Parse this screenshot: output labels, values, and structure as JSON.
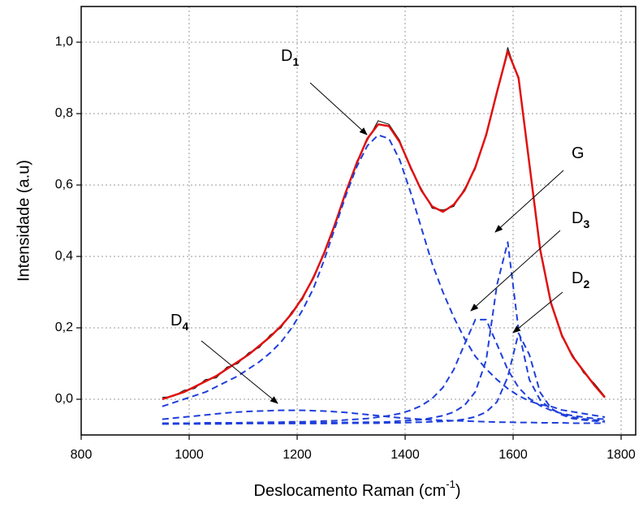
{
  "chart_data": {
    "type": "line",
    "x_label": [
      "Deslocamento Raman (cm",
      "-1",
      ")"
    ],
    "y_label": "Intensidade (a.u)",
    "xlim": [
      800,
      1827
    ],
    "ylim": [
      -0.1,
      1.1
    ],
    "xticks": [
      800,
      1000,
      1200,
      1400,
      1600,
      1800
    ],
    "yticks": [
      {
        "value": 0,
        "label": "0,0"
      },
      {
        "value": 0.2,
        "label": "0,2"
      },
      {
        "value": 0.4,
        "label": "0,4"
      },
      {
        "value": 0.6,
        "label": "0,6"
      },
      {
        "value": 0.8,
        "label": "0,8"
      },
      {
        "value": 1,
        "label": "1,0"
      }
    ],
    "grid": true,
    "annotations": [
      {
        "text": "D",
        "sub": "1"
      },
      {
        "text": "G"
      },
      {
        "text": "D",
        "sub": "3"
      },
      {
        "text": "D",
        "sub": "2"
      },
      {
        "text": "D",
        "sub": "4"
      }
    ],
    "x": [
      950,
      970,
      990,
      1010,
      1030,
      1050,
      1070,
      1090,
      1110,
      1130,
      1150,
      1170,
      1190,
      1210,
      1230,
      1250,
      1270,
      1290,
      1310,
      1330,
      1350,
      1370,
      1390,
      1410,
      1430,
      1450,
      1470,
      1490,
      1510,
      1530,
      1550,
      1570,
      1590,
      1610,
      1630,
      1650,
      1670,
      1690,
      1710,
      1730,
      1750,
      1770
    ],
    "series": [
      {
        "color": "#000000",
        "style": "solid",
        "values": [
          0.005,
          0.008,
          0.025,
          0.03,
          0.055,
          0.06,
          0.09,
          0.1,
          0.13,
          0.145,
          0.18,
          0.2,
          0.245,
          0.28,
          0.345,
          0.405,
          0.495,
          0.575,
          0.665,
          0.725,
          0.78,
          0.77,
          0.725,
          0.645,
          0.59,
          0.535,
          0.53,
          0.54,
          0.59,
          0.645,
          0.745,
          0.855,
          0.985,
          0.895,
          0.665,
          0.415,
          0.275,
          0.175,
          0.125,
          0.075,
          0.045,
          0.008
        ]
      },
      {
        "color": "#e01010",
        "style": "solid",
        "values": [
          0.0,
          0.01,
          0.02,
          0.035,
          0.05,
          0.065,
          0.085,
          0.105,
          0.125,
          0.15,
          0.175,
          0.205,
          0.24,
          0.285,
          0.34,
          0.41,
          0.49,
          0.58,
          0.66,
          0.73,
          0.77,
          0.765,
          0.72,
          0.65,
          0.585,
          0.54,
          0.525,
          0.545,
          0.585,
          0.65,
          0.74,
          0.86,
          0.975,
          0.9,
          0.66,
          0.42,
          0.27,
          0.18,
          0.12,
          0.08,
          0.04,
          0.005
        ]
      },
      {
        "color": "#1f3fdb",
        "style": "dashed",
        "values": [
          -0.02,
          -0.01,
          0.0,
          0.01,
          0.02,
          0.035,
          0.05,
          0.065,
          0.085,
          0.105,
          0.13,
          0.16,
          0.2,
          0.25,
          0.31,
          0.39,
          0.48,
          0.57,
          0.65,
          0.71,
          0.74,
          0.73,
          0.67,
          0.58,
          0.48,
          0.38,
          0.3,
          0.23,
          0.17,
          0.12,
          0.085,
          0.055,
          0.03,
          0.01,
          -0.005,
          -0.015,
          -0.02,
          -0.03,
          -0.035,
          -0.04,
          -0.045,
          -0.05
        ]
      },
      {
        "color": "#1f3fdb",
        "style": "dashed",
        "values": [
          -0.069,
          -0.069,
          -0.068,
          -0.068,
          -0.068,
          -0.068,
          -0.068,
          -0.068,
          -0.067,
          -0.067,
          -0.067,
          -0.067,
          -0.066,
          -0.066,
          -0.066,
          -0.065,
          -0.065,
          -0.065,
          -0.065,
          -0.064,
          -0.064,
          -0.063,
          -0.061,
          -0.059,
          -0.057,
          -0.052,
          -0.046,
          -0.036,
          -0.017,
          0.021,
          0.109,
          0.32,
          0.44,
          0.195,
          0.055,
          -0.002,
          -0.028,
          -0.041,
          -0.05,
          -0.055,
          -0.058,
          -0.061
        ]
      },
      {
        "color": "#1f3fdb",
        "style": "dashed",
        "values": [
          -0.067,
          -0.067,
          -0.067,
          -0.067,
          -0.066,
          -0.066,
          -0.066,
          -0.066,
          -0.065,
          -0.065,
          -0.064,
          -0.064,
          -0.063,
          -0.063,
          -0.062,
          -0.061,
          -0.06,
          -0.058,
          -0.056,
          -0.054,
          -0.05,
          -0.046,
          -0.04,
          -0.031,
          -0.018,
          0.002,
          0.033,
          0.083,
          0.154,
          0.223,
          0.223,
          0.154,
          0.083,
          0.033,
          0.002,
          -0.018,
          -0.031,
          -0.04,
          -0.046,
          -0.05,
          -0.054,
          -0.056
        ]
      },
      {
        "color": "#1f3fdb",
        "style": "dashed",
        "values": [
          -0.069,
          -0.069,
          -0.069,
          -0.069,
          -0.069,
          -0.069,
          -0.069,
          -0.068,
          -0.068,
          -0.068,
          -0.068,
          -0.068,
          -0.068,
          -0.068,
          -0.068,
          -0.068,
          -0.068,
          -0.067,
          -0.067,
          -0.067,
          -0.067,
          -0.066,
          -0.066,
          -0.065,
          -0.064,
          -0.063,
          -0.062,
          -0.06,
          -0.056,
          -0.049,
          -0.036,
          -0.0075,
          0.0625,
          0.185,
          0.125,
          0.0195,
          -0.025,
          -0.0435,
          -0.054,
          -0.058,
          -0.061,
          -0.063
        ]
      },
      {
        "color": "#1f3fdb",
        "style": "dashed",
        "values": [
          -0.056,
          -0.053,
          -0.05,
          -0.047,
          -0.044,
          -0.041,
          -0.038,
          -0.036,
          -0.034,
          -0.033,
          -0.032,
          -0.031,
          -0.031,
          -0.031,
          -0.032,
          -0.033,
          -0.035,
          -0.037,
          -0.04,
          -0.043,
          -0.046,
          -0.049,
          -0.052,
          -0.054,
          -0.056,
          -0.058,
          -0.059,
          -0.06,
          -0.061,
          -0.062,
          -0.063,
          -0.064,
          -0.064,
          -0.065,
          -0.065,
          -0.066,
          -0.066,
          -0.066,
          -0.067,
          -0.067,
          -0.067,
          -0.067
        ]
      }
    ]
  }
}
